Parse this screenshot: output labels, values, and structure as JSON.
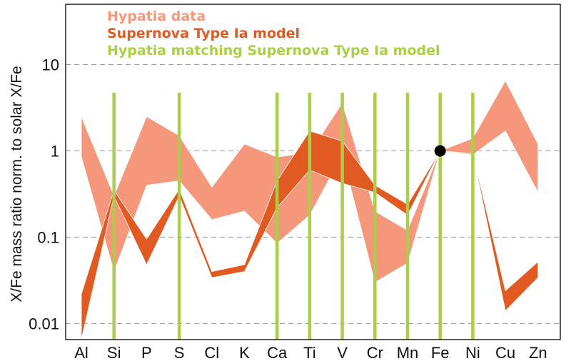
{
  "chart_data": {
    "type": "area",
    "title": "",
    "xlabel": "",
    "ylabel": "X/Fe mass ratio norm. to solar X/Fe",
    "yscale": "log",
    "ylim": [
      0.0065,
      50
    ],
    "yticks": [
      10,
      1,
      0.1,
      0.01
    ],
    "ytick_labels": [
      "10",
      "1",
      "0.1",
      "0.01"
    ],
    "categories": [
      "Al",
      "Si",
      "P",
      "S",
      "Cl",
      "K",
      "Ca",
      "Ti",
      "V",
      "Cr",
      "Mn",
      "Fe",
      "Ni",
      "Cu",
      "Zn"
    ],
    "grid": "dashed horizontal at decades",
    "legend_position": "top-left",
    "colors": {
      "hypatia": "#f5977a",
      "model": "#e05a22",
      "matching": "#a8cf45",
      "grid": "#999999",
      "marker": "#000000"
    },
    "legend": [
      {
        "key": "hypatia",
        "label": "Hypatia data"
      },
      {
        "key": "model",
        "label": "Supernova Type Ia model"
      },
      {
        "key": "matching",
        "label": "Hypatia matching Supernova Type Ia model"
      }
    ],
    "series": [
      {
        "key": "hypatia",
        "kind": "band",
        "x": [
          "Al",
          "Si",
          "P",
          "S",
          "Cl",
          "K",
          "Ca",
          "Ti",
          "V",
          "Cr",
          "Mn",
          "Fe",
          "Ni",
          "Cu",
          "Zn"
        ],
        "upper": [
          2.5,
          0.3,
          2.5,
          1.5,
          0.38,
          1.2,
          0.85,
          0.95,
          3.6,
          0.2,
          0.12,
          1.0,
          1.4,
          6.5,
          1.2
        ],
        "lower": [
          0.85,
          0.04,
          0.4,
          0.45,
          0.16,
          0.2,
          0.085,
          0.18,
          0.9,
          0.03,
          0.05,
          1.0,
          0.9,
          1.7,
          0.33
        ]
      },
      {
        "key": "model",
        "kind": "band",
        "x": [
          "Al",
          "Si",
          "P",
          "S",
          "Cl",
          "K",
          "Ca",
          "Ti",
          "V",
          "Cr",
          "Mn",
          "Fe",
          "Ni",
          "Cu",
          "Zn"
        ],
        "upper": [
          0.022,
          0.35,
          0.095,
          0.36,
          0.04,
          0.048,
          0.45,
          1.7,
          1.3,
          0.4,
          0.24,
          1.0,
          0.93,
          0.024,
          0.052
        ],
        "lower": [
          0.0065,
          0.3,
          0.048,
          0.3,
          0.034,
          0.04,
          0.22,
          0.6,
          0.42,
          0.33,
          0.18,
          1.0,
          0.93,
          0.014,
          0.034
        ]
      }
    ],
    "matching_elements": [
      "Si",
      "S",
      "Ca",
      "Ti",
      "V",
      "Cr",
      "Mn",
      "Fe",
      "Ni"
    ],
    "marker": {
      "x": "Fe",
      "y": 1
    }
  }
}
